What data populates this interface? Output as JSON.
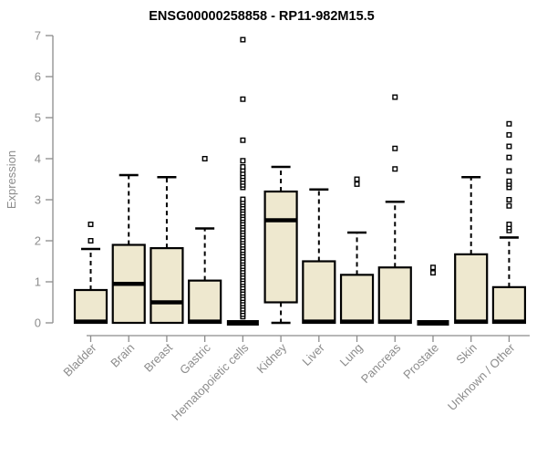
{
  "chart_data": {
    "type": "boxplot",
    "title": "ENSG00000258858 - RP11-982M15.5",
    "ylabel": "Expression",
    "xlabel": "",
    "ylim": [
      0,
      7
    ],
    "yticks": [
      0,
      1,
      2,
      3,
      4,
      5,
      6,
      7
    ],
    "grid": false,
    "legend": "none",
    "box_fill": "#EEE8CF",
    "box_stroke": "#000000",
    "axis_color": "#8C8C8C",
    "label_color": "#8C8C8C",
    "title_color": "#000000",
    "categories": [
      "Bladder",
      "Brain",
      "Breast",
      "Gastric",
      "Hematopoietic cells",
      "Kidney",
      "Liver",
      "Lung",
      "Pancreas",
      "Prostate",
      "Skin",
      "Unknown / Other"
    ],
    "series": [
      {
        "name": "Bladder",
        "low": 0,
        "q1": 0,
        "median": 0.03,
        "q3": 0.8,
        "high": 1.8,
        "outliers": [
          2.0,
          2.4
        ]
      },
      {
        "name": "Brain",
        "low": 0,
        "q1": 0,
        "median": 0.95,
        "q3": 1.9,
        "high": 3.6,
        "outliers": []
      },
      {
        "name": "Breast",
        "low": 0,
        "q1": 0,
        "median": 0.5,
        "q3": 1.82,
        "high": 3.55,
        "outliers": []
      },
      {
        "name": "Gastric",
        "low": 0,
        "q1": 0,
        "median": 0.03,
        "q3": 1.03,
        "high": 2.3,
        "outliers": [
          4.0
        ]
      },
      {
        "name": "Hematopoietic cells",
        "low": 0,
        "q1": 0,
        "median": 0,
        "q3": 0,
        "high": 0,
        "outliers": [
          0.15,
          0.21,
          0.28,
          0.34,
          0.41,
          0.47,
          0.54,
          0.6,
          0.67,
          0.73,
          0.8,
          0.86,
          0.93,
          0.99,
          1.06,
          1.12,
          1.19,
          1.25,
          1.32,
          1.38,
          1.45,
          1.51,
          1.58,
          1.64,
          1.71,
          1.77,
          1.84,
          1.9,
          1.97,
          2.03,
          2.1,
          2.16,
          2.23,
          2.29,
          2.36,
          2.42,
          2.49,
          2.55,
          2.62,
          2.68,
          2.75,
          2.81,
          2.88,
          2.94,
          3.01,
          3.3,
          3.36,
          3.43,
          3.5,
          3.57,
          3.64,
          3.72,
          3.8,
          3.95,
          4.45,
          5.45,
          6.9
        ]
      },
      {
        "name": "Kidney",
        "low": 0,
        "q1": 0.5,
        "median": 2.5,
        "q3": 3.2,
        "high": 3.8,
        "outliers": []
      },
      {
        "name": "Liver",
        "low": 0,
        "q1": 0,
        "median": 0.03,
        "q3": 1.5,
        "high": 3.25,
        "outliers": []
      },
      {
        "name": "Lung",
        "low": 0,
        "q1": 0,
        "median": 0.03,
        "q3": 1.17,
        "high": 2.2,
        "outliers": [
          3.38,
          3.5
        ]
      },
      {
        "name": "Pancreas",
        "low": 0,
        "q1": 0,
        "median": 0.03,
        "q3": 1.35,
        "high": 2.95,
        "outliers": [
          3.75,
          4.25,
          5.5
        ]
      },
      {
        "name": "Prostate",
        "low": 0,
        "q1": 0,
        "median": 0,
        "q3": 0,
        "high": 0,
        "outliers": [
          1.22,
          1.35
        ]
      },
      {
        "name": "Skin",
        "low": 0,
        "q1": 0,
        "median": 0.03,
        "q3": 1.67,
        "high": 3.55,
        "outliers": []
      },
      {
        "name": "Unknown / Other",
        "low": 0,
        "q1": 0,
        "median": 0.03,
        "q3": 0.87,
        "high": 2.08,
        "outliers": [
          2.25,
          2.32,
          2.4,
          2.85,
          3.0,
          3.3,
          3.38,
          3.45,
          3.7,
          4.03,
          4.3,
          4.58,
          4.85
        ]
      }
    ]
  }
}
